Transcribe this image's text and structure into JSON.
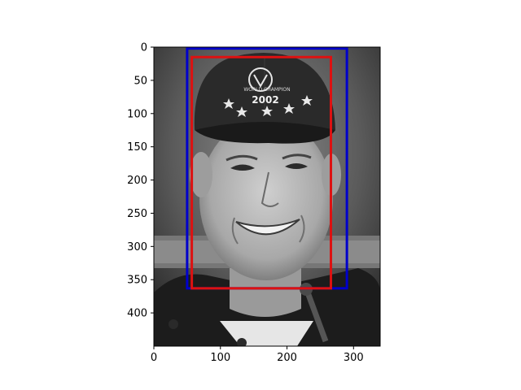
{
  "figure": {
    "photo_description": "grayscale portrait photo, smiling man wearing a dark cap",
    "cap_text": {
      "arc": "WORLD CHAMPION",
      "year": "2002"
    }
  },
  "axes": {
    "x_range": [
      0,
      340
    ],
    "y_range": [
      450,
      0
    ],
    "x_ticks": [
      0,
      100,
      200,
      300
    ],
    "y_ticks": [
      0,
      50,
      100,
      150,
      200,
      250,
      300,
      350,
      400
    ],
    "frame_color": "#000000"
  },
  "boxes": [
    {
      "name": "blue-box",
      "color": "#0000cc",
      "x0": 50,
      "y0": 2,
      "x1": 290,
      "y1": 363
    },
    {
      "name": "red-box",
      "color": "#dd1111",
      "x0": 57,
      "y0": 15,
      "x1": 266,
      "y1": 363
    }
  ]
}
